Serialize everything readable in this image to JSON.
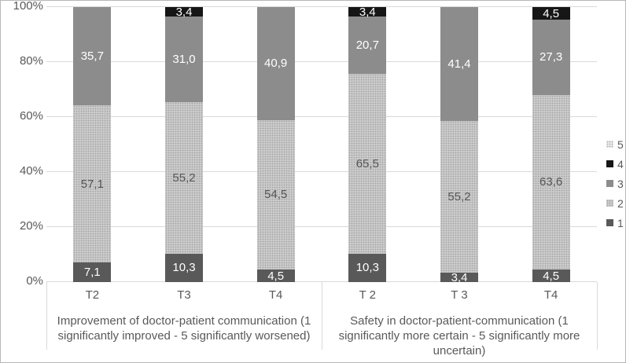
{
  "chart_data": {
    "type": "bar",
    "stacked": true,
    "unit": "%",
    "grid": true,
    "y_axis": {
      "min": 0,
      "max": 100,
      "ticks": [
        {
          "label": "0%",
          "value": 0
        },
        {
          "label": "20%",
          "value": 20
        },
        {
          "label": "40%",
          "value": 40
        },
        {
          "label": "60%",
          "value": 60
        },
        {
          "label": "80%",
          "value": 80
        },
        {
          "label": "100%",
          "value": 100
        }
      ]
    },
    "categories": [
      "T2",
      "T3",
      "T4",
      "T 2",
      "T 3",
      "T4"
    ],
    "groups": [
      {
        "label": "Improvement of doctor-patient communication (1 significantly improved -  5 significantly worsened)",
        "category_indexes": [
          0,
          1,
          2
        ]
      },
      {
        "label": "Safety in doctor-patient-communication (1 significantly more certain - 5 significantly more uncertain)",
        "category_indexes": [
          3,
          4,
          5
        ]
      }
    ],
    "series": [
      {
        "name": "1",
        "color": "#595959",
        "pattern": "solid",
        "text_color": "#ffffff",
        "values": [
          7.1,
          10.3,
          4.5,
          10.3,
          3.4,
          4.5
        ],
        "labels": [
          "7,1",
          "10,3",
          "4,5",
          "10,3",
          "3,4",
          "4,5"
        ]
      },
      {
        "name": "2",
        "color": "#cbcbcb",
        "pattern": "dots",
        "text_color": "#545454",
        "values": [
          57.1,
          55.2,
          54.5,
          65.5,
          55.2,
          63.6
        ],
        "labels": [
          "57,1",
          "55,2",
          "54,5",
          "65,5",
          "55,2",
          "63,6"
        ]
      },
      {
        "name": "3",
        "color": "#8c8c8c",
        "pattern": "solid",
        "text_color": "#ffffff",
        "values": [
          35.7,
          31.0,
          40.9,
          20.7,
          41.4,
          27.3
        ],
        "labels": [
          "35,7",
          "31,0",
          "40,9",
          "20,7",
          "41,4",
          "27,3"
        ]
      },
      {
        "name": "4",
        "color": "#161616",
        "pattern": "solid",
        "text_color": "#ffffff",
        "values": [
          0,
          3.4,
          0,
          3.4,
          0,
          4.5
        ],
        "labels": [
          "",
          "3,4",
          "",
          "3,4",
          "",
          "4,5"
        ]
      },
      {
        "name": "5",
        "color": "#e8e8e8",
        "pattern": "dots",
        "text_color": "#545454",
        "values": [
          0,
          0,
          0,
          0,
          0,
          0
        ],
        "labels": [
          "",
          "",
          "",
          "",
          "",
          ""
        ]
      }
    ],
    "legend": {
      "position": "right",
      "items": [
        "5",
        "4",
        "3",
        "2",
        "1"
      ]
    },
    "colors": {
      "gridline": "#d9d9d9",
      "axis_text": "#595959",
      "background": "#ffffff"
    }
  }
}
